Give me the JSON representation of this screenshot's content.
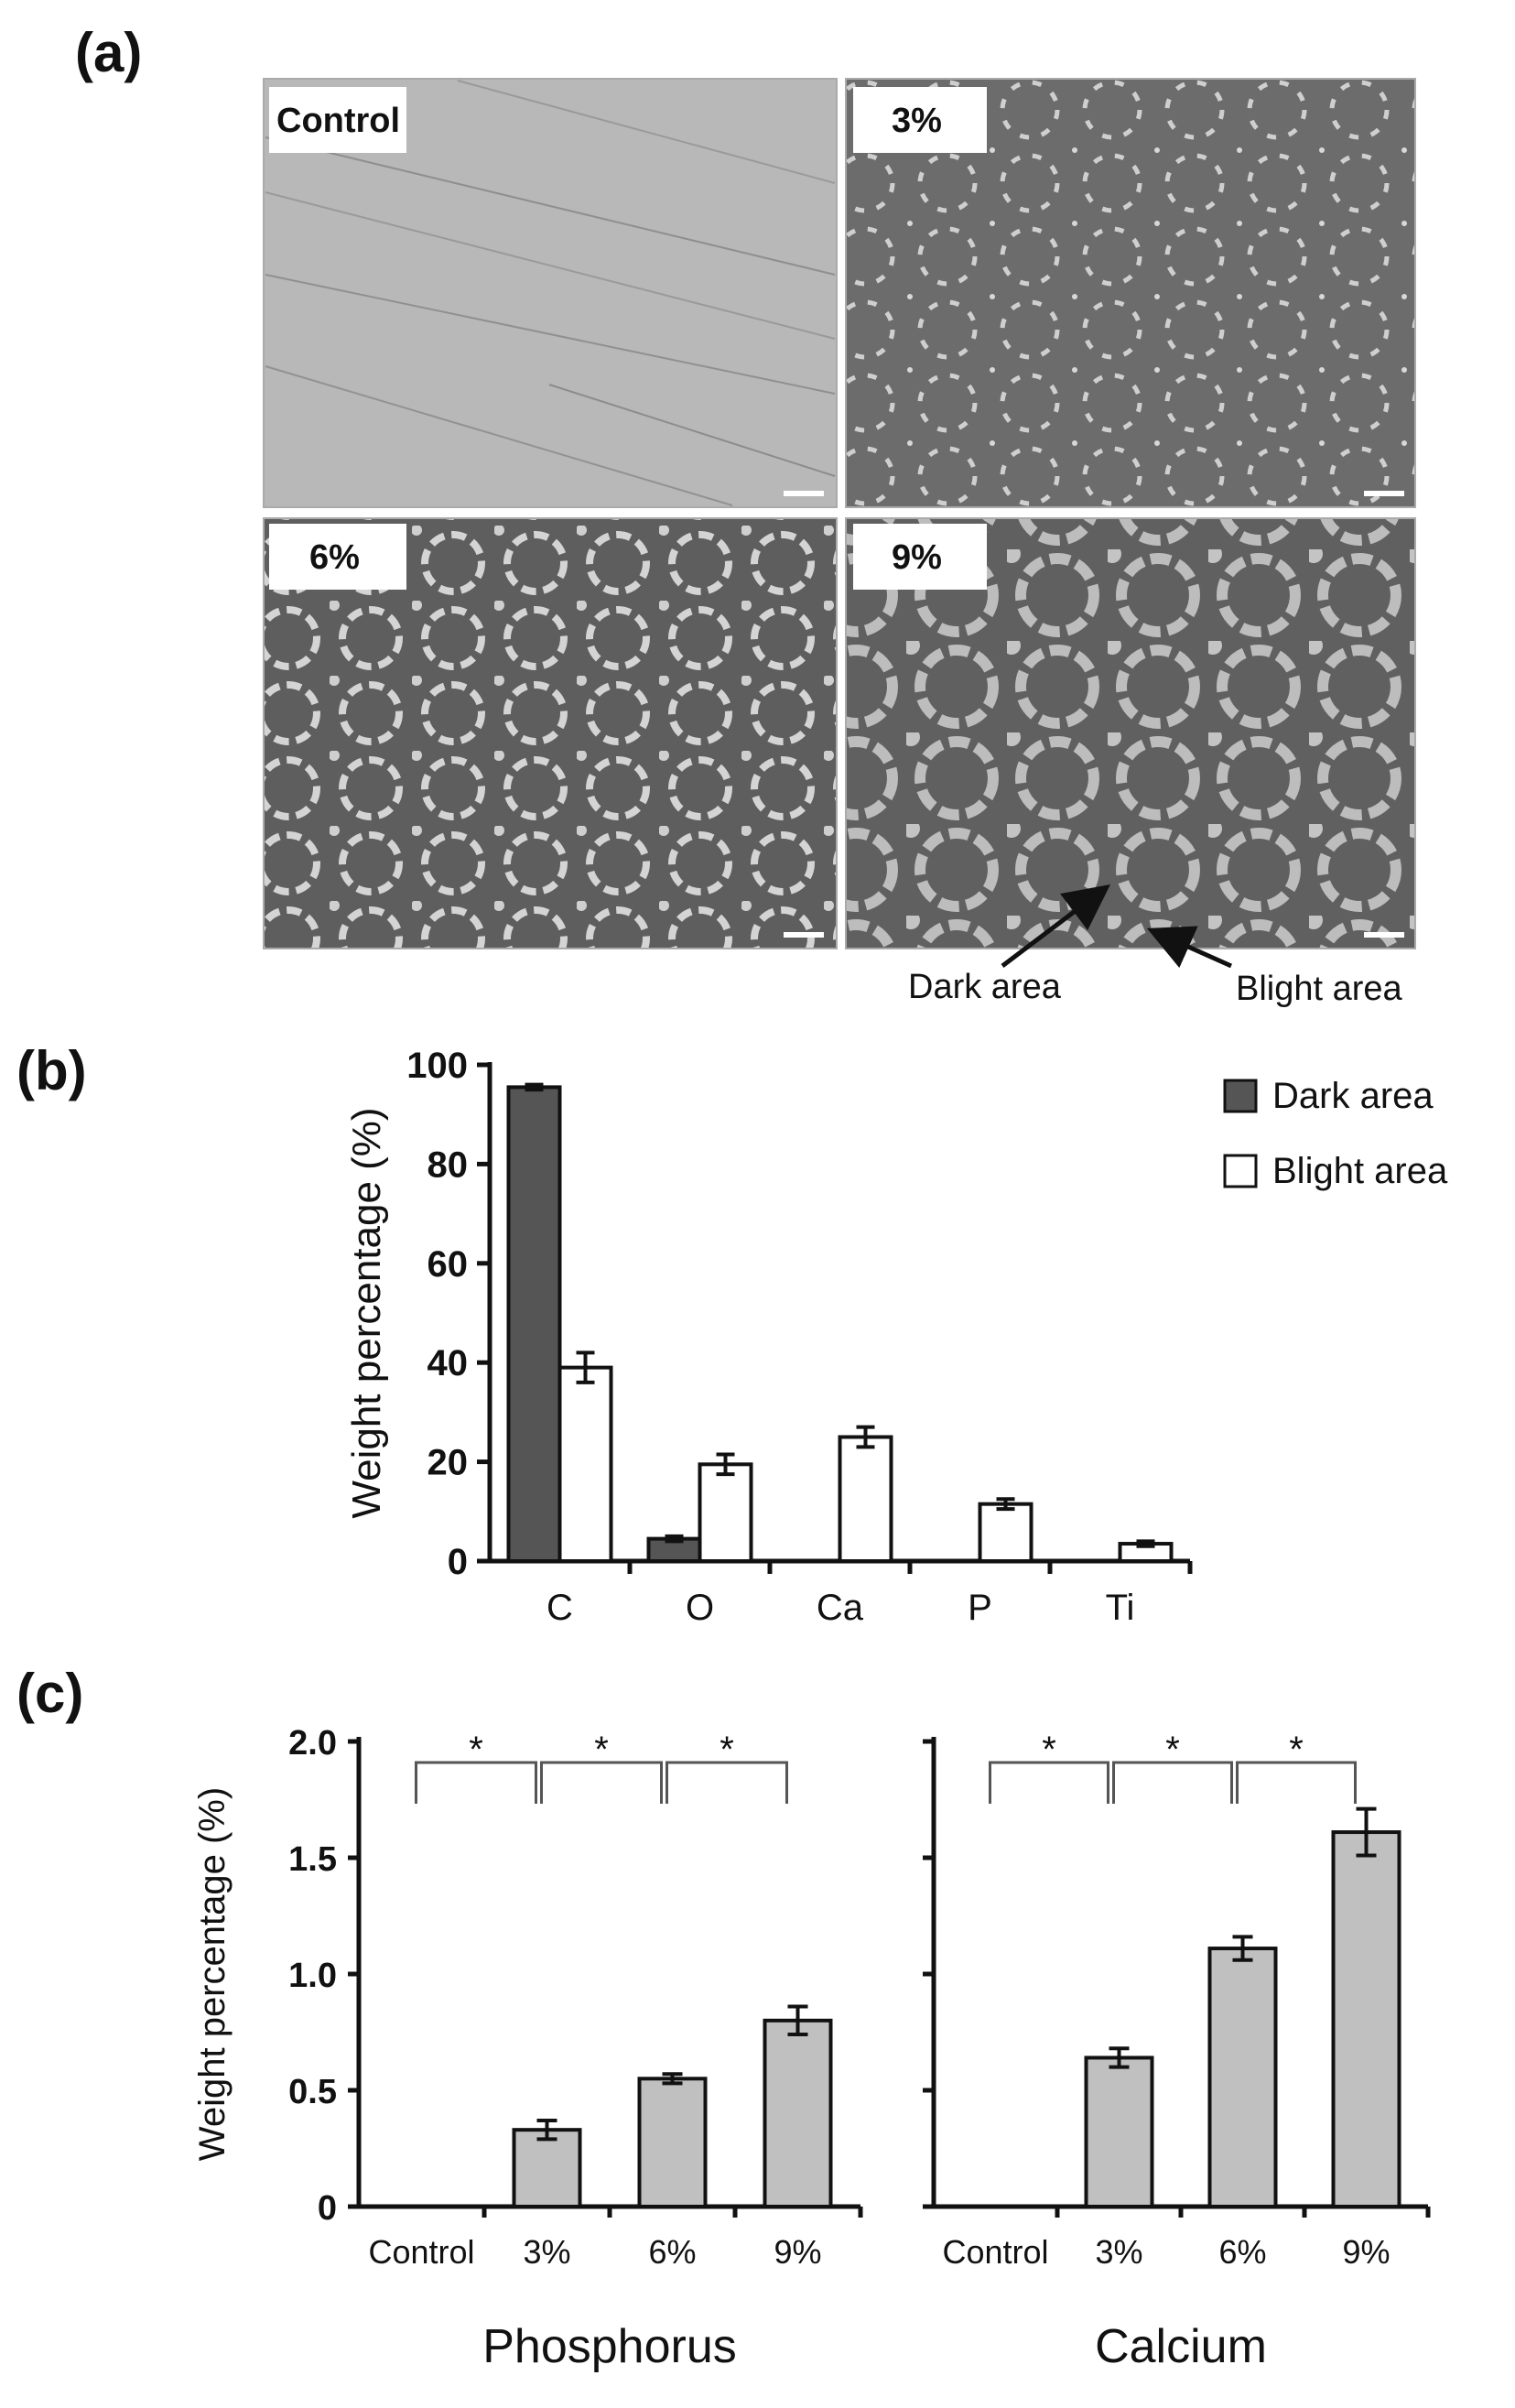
{
  "panel_labels": {
    "a": "(a)",
    "b": "(b)",
    "c": "(c)"
  },
  "micrographs": [
    {
      "label": "Control"
    },
    {
      "label": "3%"
    },
    {
      "label": "6%"
    },
    {
      "label": "9%"
    }
  ],
  "annotations": {
    "dark": "Dark area",
    "bright": "Blight area"
  },
  "chart_data": [
    {
      "type": "bar",
      "panel": "(b)",
      "categories": [
        "C",
        "O",
        "Ca",
        "P",
        "Ti"
      ],
      "ylabel": "Weight percentage (%)",
      "ylim": [
        0,
        100
      ],
      "yticks": [
        0,
        20,
        40,
        60,
        80,
        100
      ],
      "legend": "top-right",
      "series": [
        {
          "name": "Dark area",
          "color": "#555555",
          "values": [
            95.5,
            4.5,
            0,
            0,
            0
          ],
          "errors": [
            0.5,
            0.5,
            0,
            0,
            0
          ]
        },
        {
          "name": "Blight area",
          "color": "#ffffff",
          "values": [
            39,
            19.5,
            25,
            11.5,
            3.5
          ],
          "errors": [
            3,
            2,
            2,
            1,
            0.5
          ]
        }
      ]
    },
    {
      "type": "bar",
      "panel": "(c)",
      "title": "Phosphorus",
      "categories": [
        "Control",
        "3%",
        "6%",
        "9%"
      ],
      "ylabel": "Weight percentage (%)",
      "ylim": [
        0,
        2
      ],
      "yticks": [
        "0",
        "0.5",
        "1.0",
        "1.5",
        "2.0"
      ],
      "color": "#c0c0c0",
      "values": [
        0,
        0.33,
        0.55,
        0.8
      ],
      "errors": [
        0,
        0.04,
        0.02,
        0.06
      ],
      "significance": [
        "*",
        "*",
        "*"
      ]
    },
    {
      "type": "bar",
      "panel": "(c)",
      "title": "Calcium",
      "categories": [
        "Control",
        "3%",
        "6%",
        "9%"
      ],
      "ylim": [
        0,
        2
      ],
      "color": "#c0c0c0",
      "values": [
        0,
        0.64,
        1.11,
        1.61
      ],
      "errors": [
        0,
        0.04,
        0.05,
        0.1
      ],
      "significance": [
        "*",
        "*",
        "*"
      ]
    }
  ]
}
